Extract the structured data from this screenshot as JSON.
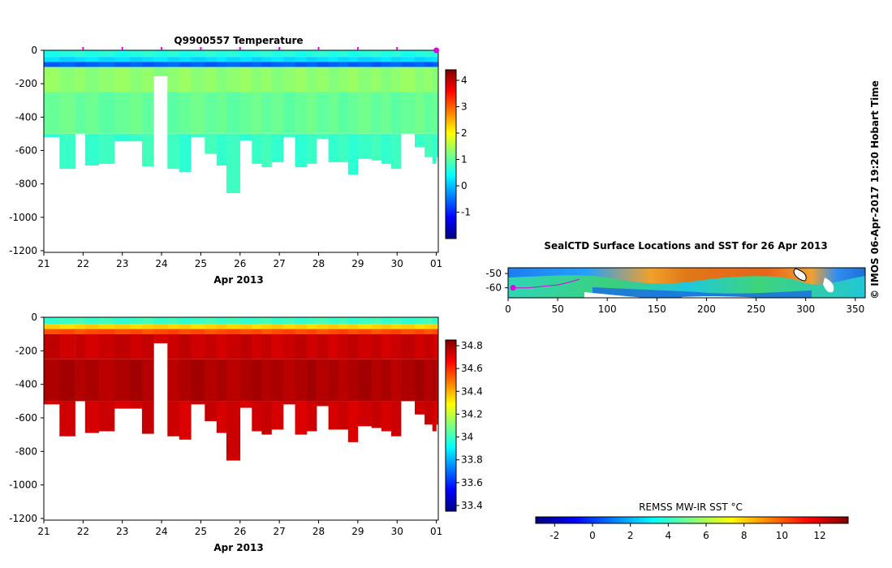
{
  "credit": "© IMOS 06-Apr-2017 19:20 Hobart Time",
  "colors": {
    "profile_marker": "#e000e0",
    "jet": [
      "#00007f",
      "#0000ff",
      "#007fff",
      "#00ffff",
      "#7fff7f",
      "#ffff00",
      "#ff7f00",
      "#ff0000",
      "#7f0000"
    ]
  },
  "chart_data": [
    {
      "id": "temperature",
      "type": "heatmap",
      "title": "Q9900557  Temperature",
      "xlabel": "Apr 2013",
      "x_ticks": [
        "21",
        "22",
        "23",
        "24",
        "25",
        "26",
        "27",
        "28",
        "29",
        "30",
        "01"
      ],
      "x_range": [
        21,
        31.05
      ],
      "y_ticks": [
        "0",
        "-200",
        "-400",
        "-600",
        "-800",
        "-1000",
        "-1200"
      ],
      "y_range": [
        -1210,
        0
      ],
      "colorbar_ticks": [
        "-1",
        "0",
        "1",
        "2",
        "3",
        "4"
      ],
      "colorbar_range": [
        -2,
        4.4
      ],
      "profile_markers_days": [
        22,
        23,
        24,
        25,
        26,
        27,
        28,
        29,
        30,
        31
      ],
      "profiles": [
        {
          "t": 21.0,
          "max_depth": 520
        },
        {
          "t": 21.4,
          "max_depth": 710
        },
        {
          "t": 21.8,
          "max_depth": 500
        },
        {
          "t": 22.05,
          "max_depth": 690
        },
        {
          "t": 22.4,
          "max_depth": 680
        },
        {
          "t": 22.8,
          "max_depth": 545
        },
        {
          "t": 23.2,
          "max_depth": 545
        },
        {
          "t": 23.5,
          "max_depth": 695
        },
        {
          "t": 23.8,
          "max_depth": 155
        },
        {
          "t": 24.15,
          "max_depth": 710
        },
        {
          "t": 24.45,
          "max_depth": 730
        },
        {
          "t": 24.75,
          "max_depth": 520
        },
        {
          "t": 25.1,
          "max_depth": 620
        },
        {
          "t": 25.4,
          "max_depth": 690
        },
        {
          "t": 25.65,
          "max_depth": 855
        },
        {
          "t": 26.0,
          "max_depth": 540
        },
        {
          "t": 26.3,
          "max_depth": 680
        },
        {
          "t": 26.55,
          "max_depth": 700
        },
        {
          "t": 26.8,
          "max_depth": 670
        },
        {
          "t": 27.1,
          "max_depth": 520
        },
        {
          "t": 27.4,
          "max_depth": 700
        },
        {
          "t": 27.7,
          "max_depth": 680
        },
        {
          "t": 27.95,
          "max_depth": 530
        },
        {
          "t": 28.25,
          "max_depth": 670
        },
        {
          "t": 28.5,
          "max_depth": 670
        },
        {
          "t": 28.75,
          "max_depth": 745
        },
        {
          "t": 29.0,
          "max_depth": 650
        },
        {
          "t": 29.35,
          "max_depth": 660
        },
        {
          "t": 29.6,
          "max_depth": 680
        },
        {
          "t": 29.85,
          "max_depth": 710
        },
        {
          "t": 30.1,
          "max_depth": 500
        },
        {
          "t": 30.45,
          "max_depth": 580
        },
        {
          "t": 30.7,
          "max_depth": 640
        },
        {
          "t": 30.9,
          "max_depth": 680
        },
        {
          "t": 31.0,
          "max_depth": 640
        }
      ],
      "layers": [
        {
          "top": 0,
          "bottom": 40,
          "value": 0.6
        },
        {
          "top": 40,
          "bottom": 70,
          "value": 0.2
        },
        {
          "top": 70,
          "bottom": 100,
          "value": -0.6
        },
        {
          "top": 100,
          "bottom": 250,
          "value": 1.3
        },
        {
          "top": 250,
          "bottom": 500,
          "value": 1.05
        },
        {
          "top": 500,
          "bottom": 900,
          "value": 0.75
        }
      ]
    },
    {
      "id": "salinity",
      "type": "heatmap",
      "title": "",
      "xlabel": "Apr 2013",
      "x_ticks": [
        "21",
        "22",
        "23",
        "24",
        "25",
        "26",
        "27",
        "28",
        "29",
        "30",
        "01"
      ],
      "x_range": [
        21,
        31.05
      ],
      "y_ticks": [
        "0",
        "-200",
        "-400",
        "-600",
        "-800",
        "-1000",
        "-1200"
      ],
      "y_range": [
        -1210,
        0
      ],
      "colorbar_ticks": [
        "33.4",
        "33.6",
        "33.8",
        "34",
        "34.2",
        "34.4",
        "34.6",
        "34.8"
      ],
      "colorbar_range": [
        33.35,
        34.85
      ],
      "layers": [
        {
          "top": 0,
          "bottom": 40,
          "value": 34.0
        },
        {
          "top": 40,
          "bottom": 70,
          "value": 34.35
        },
        {
          "top": 70,
          "bottom": 100,
          "value": 34.55
        },
        {
          "top": 100,
          "bottom": 250,
          "value": 34.74
        },
        {
          "top": 250,
          "bottom": 500,
          "value": 34.78
        },
        {
          "top": 500,
          "bottom": 900,
          "value": 34.73
        }
      ]
    },
    {
      "id": "sst_map",
      "type": "heatmap",
      "title": "SealCTD Surface Locations and SST for 26 Apr 2013",
      "x_ticks": [
        "0",
        "50",
        "100",
        "150",
        "200",
        "250",
        "300",
        "350"
      ],
      "x_range": [
        0,
        360
      ],
      "y_ticks": [
        "-50",
        "-60"
      ],
      "y_range": [
        -67,
        -46
      ],
      "track": [
        [
          5,
          -60
        ],
        [
          20,
          -60
        ],
        [
          35,
          -59
        ],
        [
          50,
          -58
        ],
        [
          62,
          -56
        ],
        [
          72,
          -54
        ]
      ],
      "marker": [
        5,
        -60
      ]
    },
    {
      "id": "sst_colorbar",
      "type": "colorbar",
      "title": "REMSS MW-IR SST °C",
      "ticks": [
        "-2",
        "0",
        "2",
        "4",
        "6",
        "8",
        "10",
        "12"
      ],
      "range": [
        -3,
        13.5
      ]
    }
  ]
}
